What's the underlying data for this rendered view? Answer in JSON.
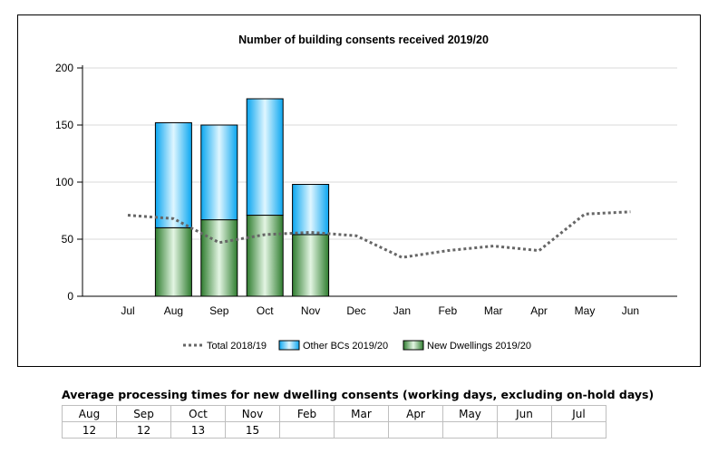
{
  "chart_data": {
    "type": "bar",
    "title": "Number of building consents received 2019/20",
    "categories": [
      "Jul",
      "Aug",
      "Sep",
      "Oct",
      "Nov",
      "Dec",
      "Jan",
      "Feb",
      "Mar",
      "Apr",
      "May",
      "Jun"
    ],
    "yticks": [
      "0",
      "50",
      "100",
      "150",
      "200"
    ],
    "ylim": [
      0,
      200
    ],
    "grid": true,
    "legend_position": "bottom",
    "series": [
      {
        "name": "New Dwellings 2019/20",
        "kind": "stacked-bar",
        "color": "#4f9a4f",
        "values": [
          null,
          60,
          67,
          71,
          54,
          null,
          null,
          null,
          null,
          null,
          null,
          null
        ]
      },
      {
        "name": "Other BCs 2019/20",
        "kind": "stacked-bar",
        "color": "#33ccff",
        "values": [
          null,
          92,
          83,
          102,
          44,
          null,
          null,
          null,
          null,
          null,
          null,
          null
        ]
      },
      {
        "name": "Total 2018/19",
        "kind": "dotted-line",
        "color": "#666666",
        "values": [
          71,
          68,
          47,
          54,
          56,
          53,
          34,
          40,
          44,
          40,
          72,
          74
        ]
      }
    ],
    "legend_order": [
      "Total 2018/19",
      "Other BCs 2019/20",
      "New Dwellings 2019/20"
    ]
  },
  "processing_table": {
    "caption": "Average processing times for new dwelling consents (working days, excluding on-hold days)",
    "months": [
      "Aug",
      "Sep",
      "Oct",
      "Nov",
      "Feb",
      "Mar",
      "Apr",
      "May",
      "Jun",
      "Jul"
    ],
    "values": [
      "12",
      "12",
      "13",
      "15",
      "",
      "",
      "",
      "",
      "",
      ""
    ]
  }
}
